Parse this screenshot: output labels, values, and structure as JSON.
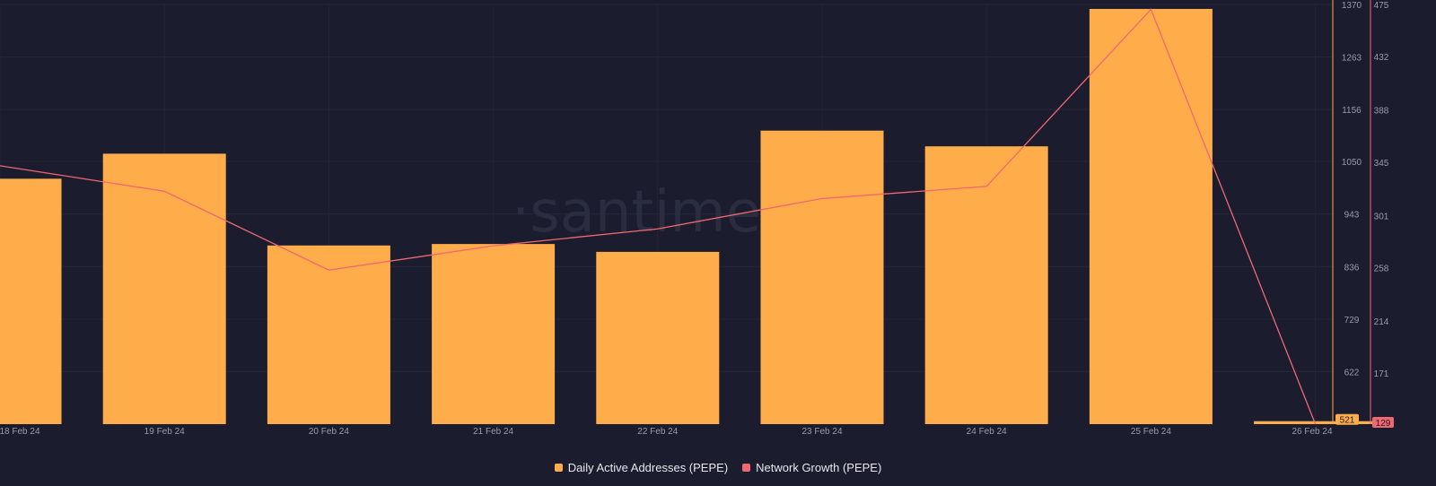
{
  "chart_data": {
    "type": "bar",
    "watermark": "·santiment",
    "categories": [
      "18 Feb 24",
      "19 Feb 24",
      "20 Feb 24",
      "21 Feb 24",
      "22 Feb 24",
      "23 Feb 24",
      "24 Feb 24",
      "25 Feb 24",
      "26 Feb 24"
    ],
    "series": [
      {
        "name": "Daily Active Addresses (PEPE)",
        "type": "bar",
        "axis": "left",
        "color": "#ffad4a",
        "values": [
          1015,
          1066,
          879,
          882,
          866,
          1113,
          1081,
          1361,
          521
        ],
        "last_value_label": "521"
      },
      {
        "name": "Network Growth (PEPE)",
        "type": "line",
        "axis": "right",
        "color": "#f06870",
        "values": [
          342,
          321,
          256,
          276,
          290,
          315,
          325,
          471,
          129
        ],
        "last_value_label": "129"
      }
    ],
    "y_left": {
      "min": 515,
      "max": 1370,
      "ticks": [
        "1370",
        "1263",
        "1156",
        "1050",
        "943",
        "836",
        "729",
        "622"
      ]
    },
    "y_right": {
      "min": 129,
      "max": 475,
      "ticks": [
        "475",
        "432",
        "388",
        "345",
        "301",
        "258",
        "214",
        "171"
      ]
    },
    "grid": true,
    "legend_position": "bottom-center"
  }
}
